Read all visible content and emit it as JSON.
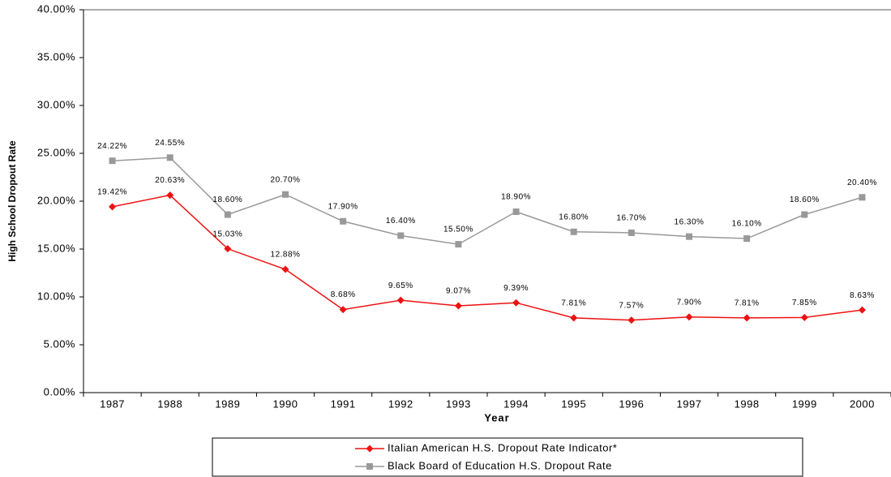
{
  "chart_data": {
    "type": "line",
    "x_label": "Year",
    "y_label": "High School Dropout Rate",
    "categories": [
      "1987",
      "1988",
      "1989",
      "1990",
      "1991",
      "1992",
      "1993",
      "1994",
      "1995",
      "1996",
      "1997",
      "1998",
      "1999",
      "2000"
    ],
    "series": [
      {
        "name": "Italian American H.S. Dropout Rate Indicator*",
        "color": "#ee1111",
        "marker": "diamond",
        "values": [
          19.42,
          20.63,
          15.03,
          12.88,
          8.68,
          9.65,
          9.07,
          9.39,
          7.81,
          7.57,
          7.9,
          7.81,
          7.85,
          8.63
        ],
        "value_labels": [
          "19.42%",
          "20.63%",
          "15.03%",
          "12.88%",
          "8.68%",
          "9.65%",
          "9.07%",
          "9.39%",
          "7.81%",
          "7.57%",
          "7.90%",
          "7.81%",
          "7.85%",
          "8.63%"
        ]
      },
      {
        "name": "Black Board of Education H.S. Dropout Rate",
        "color": "#999999",
        "marker": "square",
        "values": [
          24.22,
          24.55,
          18.6,
          20.7,
          17.9,
          16.4,
          15.5,
          18.9,
          16.8,
          16.7,
          16.3,
          16.1,
          18.6,
          20.4
        ],
        "value_labels": [
          "24.22%",
          "24.55%",
          "18.60%",
          "20.70%",
          "17.90%",
          "16.40%",
          "15.50%",
          "18.90%",
          "16.80%",
          "16.70%",
          "16.30%",
          "16.10%",
          "18.60%",
          "20.40%"
        ]
      }
    ],
    "ylim": [
      0,
      40
    ],
    "yticks": [
      {
        "value": 0,
        "label": "0.00%"
      },
      {
        "value": 5,
        "label": "5.00%"
      },
      {
        "value": 10,
        "label": "10.00%"
      },
      {
        "value": 15,
        "label": "15.00%"
      },
      {
        "value": 20,
        "label": "20.00%"
      },
      {
        "value": 25,
        "label": "25.00%"
      },
      {
        "value": 30,
        "label": "30.00%"
      },
      {
        "value": 35,
        "label": "35.00%"
      },
      {
        "value": 40,
        "label": "40.00%"
      }
    ],
    "grid": false,
    "legend": "bottom"
  }
}
